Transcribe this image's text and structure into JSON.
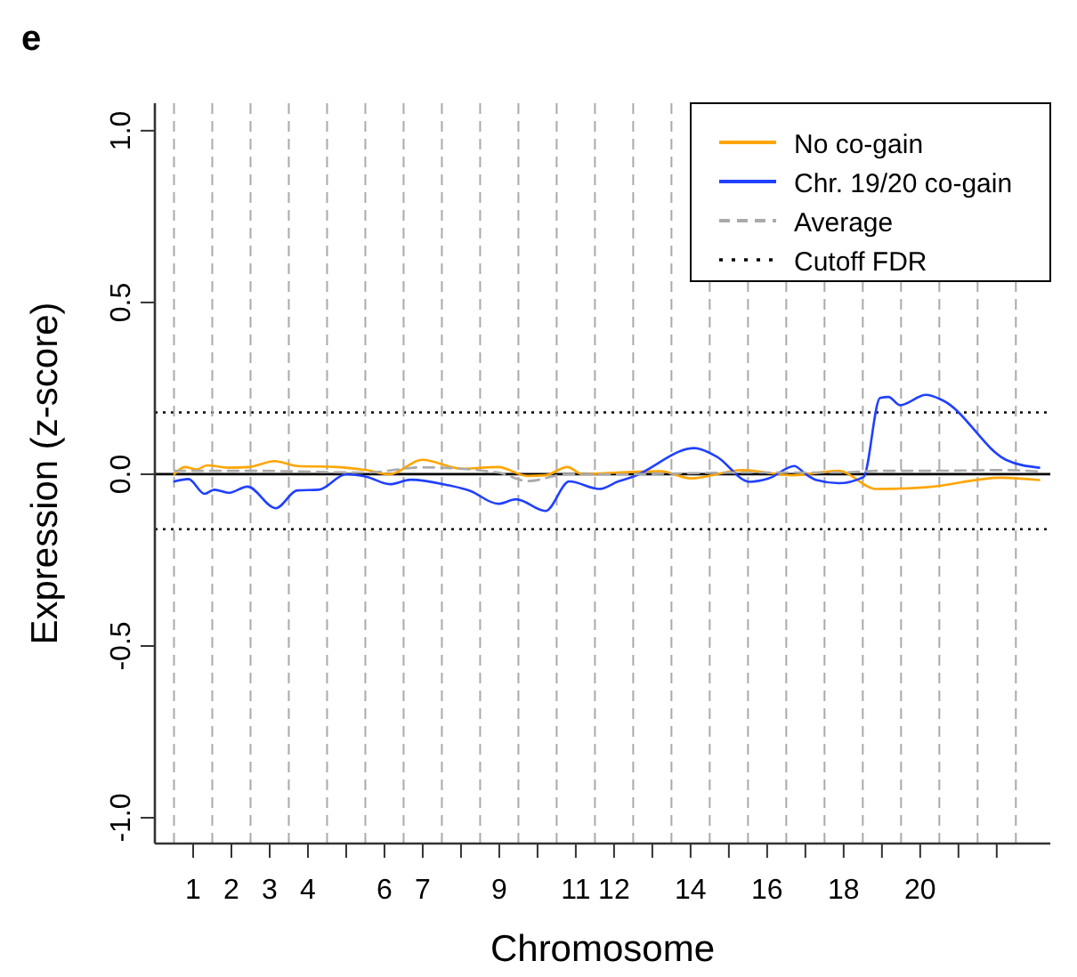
{
  "chart_data": {
    "type": "line",
    "annotations": [
      "e"
    ],
    "xlabel": "Chromosome",
    "ylabel": "Expression (z-score)",
    "xlim": [
      0,
      23.4
    ],
    "ylim": [
      -1.075,
      1.08
    ],
    "xticks": [
      1,
      2,
      3,
      4,
      {
        "value": 5,
        "label": null
      },
      6,
      7,
      {
        "value": 8,
        "label": null
      },
      9,
      {
        "value": 10,
        "label": null
      },
      11,
      12,
      {
        "value": 13,
        "label": null
      },
      14,
      {
        "value": 15,
        "label": null
      },
      16,
      {
        "value": 17,
        "label": null
      },
      18,
      {
        "value": 19,
        "label": null
      },
      20,
      {
        "value": 21,
        "label": null
      },
      {
        "value": 22,
        "label": null
      }
    ],
    "yticks": [
      {
        "value": -1,
        "label": "-1.0"
      },
      {
        "value": -0.5,
        "label": "-0.5"
      },
      {
        "value": 0,
        "label": "0.0"
      },
      {
        "value": 0.5,
        "label": "0.5"
      },
      {
        "value": 1,
        "label": "1.0"
      }
    ],
    "grid": false,
    "legend": "top right",
    "series": [
      {
        "name": "No co-gain",
        "color": "#ffa500",
        "x": [
          0.51,
          0.78,
          1.1,
          1.36,
          1.93,
          2.47,
          3.13,
          3.72,
          4.77,
          5.52,
          6.14,
          6.98,
          8.02,
          8.97,
          9.74,
          10.21,
          10.78,
          11.17,
          12.11,
          13.21,
          14.0,
          15.36,
          16.66,
          17.86,
          18.86,
          20.15,
          22.11,
          23.11
        ],
        "values": [
          0.0,
          0.021,
          0.014,
          0.026,
          0.019,
          0.021,
          0.038,
          0.024,
          0.021,
          0.012,
          0.0,
          0.042,
          0.016,
          0.021,
          -0.005,
          -0.003,
          0.021,
          0.0,
          0.005,
          0.009,
          -0.012,
          0.012,
          -0.003,
          0.01,
          -0.043,
          -0.038,
          -0.01,
          -0.017
        ]
      },
      {
        "name": "Chr. 19/20 co-gain",
        "color": "#2040ff",
        "x": [
          0.51,
          0.88,
          1.3,
          1.55,
          1.93,
          2.42,
          3.16,
          3.72,
          4.28,
          5.0,
          5.52,
          6.14,
          6.68,
          7.62,
          8.23,
          8.97,
          9.44,
          10.21,
          10.83,
          11.61,
          12.11,
          12.48,
          14.1,
          14.67,
          15.55,
          16.05,
          16.71,
          17.01,
          17.29,
          17.86,
          18.52,
          18.95,
          19.17,
          19.47,
          20.15,
          20.59,
          22.24,
          23.11
        ],
        "values": [
          -0.021,
          -0.014,
          -0.057,
          -0.045,
          -0.054,
          -0.036,
          -0.099,
          -0.047,
          -0.045,
          0.0,
          -0.007,
          -0.029,
          -0.016,
          -0.031,
          -0.048,
          -0.086,
          -0.073,
          -0.107,
          -0.021,
          -0.043,
          -0.021,
          -0.008,
          0.076,
          0.052,
          -0.022,
          -0.012,
          0.024,
          0.0,
          -0.017,
          -0.026,
          -0.008,
          0.222,
          0.225,
          0.201,
          0.231,
          0.215,
          0.042,
          0.019
        ]
      },
      {
        "name": "Average",
        "color": "#aaaaaa",
        "line_style": "dashed",
        "x": [
          0.51,
          2.5,
          5.52,
          6.98,
          8.97,
          9.74,
          10.78,
          12.11,
          15.55,
          17.86,
          18.95,
          20.15,
          22.24,
          23.11
        ],
        "values": [
          0.01,
          0.01,
          0.005,
          0.02,
          0.005,
          -0.02,
          0.0,
          0.0,
          0.005,
          0.005,
          0.01,
          0.01,
          0.012,
          0.008
        ]
      }
    ],
    "ref_lines": [
      {
        "axis": "y",
        "value": 0,
        "color": "#000000",
        "line_style": "solid"
      },
      {
        "axis": "y",
        "value": 0.18,
        "label": "Cutoff FDR",
        "color": "#000000",
        "line_style": "dotted"
      },
      {
        "axis": "y",
        "value": -0.16,
        "color": "#000000",
        "line_style": "dotted"
      },
      {
        "axis": "x",
        "value": 0.5,
        "color": "#aaaaaa",
        "line_style": "dashed"
      },
      {
        "axis": "x",
        "value": 1.5,
        "color": "#aaaaaa",
        "line_style": "dashed"
      },
      {
        "axis": "x",
        "value": 2.5,
        "color": "#aaaaaa",
        "line_style": "dashed"
      },
      {
        "axis": "x",
        "value": 3.5,
        "color": "#aaaaaa",
        "line_style": "dashed"
      },
      {
        "axis": "x",
        "value": 4.5,
        "color": "#aaaaaa",
        "line_style": "dashed"
      },
      {
        "axis": "x",
        "value": 5.5,
        "color": "#aaaaaa",
        "line_style": "dashed"
      },
      {
        "axis": "x",
        "value": 6.5,
        "color": "#aaaaaa",
        "line_style": "dashed"
      },
      {
        "axis": "x",
        "value": 7.5,
        "color": "#aaaaaa",
        "line_style": "dashed"
      },
      {
        "axis": "x",
        "value": 8.5,
        "color": "#aaaaaa",
        "line_style": "dashed"
      },
      {
        "axis": "x",
        "value": 9.5,
        "color": "#aaaaaa",
        "line_style": "dashed"
      },
      {
        "axis": "x",
        "value": 10.5,
        "color": "#aaaaaa",
        "line_style": "dashed"
      },
      {
        "axis": "x",
        "value": 11.5,
        "color": "#aaaaaa",
        "line_style": "dashed"
      },
      {
        "axis": "x",
        "value": 12.5,
        "color": "#aaaaaa",
        "line_style": "dashed"
      },
      {
        "axis": "x",
        "value": 13.5,
        "color": "#aaaaaa",
        "line_style": "dashed"
      },
      {
        "axis": "x",
        "value": 14.5,
        "color": "#aaaaaa",
        "line_style": "dashed"
      },
      {
        "axis": "x",
        "value": 15.5,
        "color": "#aaaaaa",
        "line_style": "dashed"
      },
      {
        "axis": "x",
        "value": 16.5,
        "color": "#aaaaaa",
        "line_style": "dashed"
      },
      {
        "axis": "x",
        "value": 17.5,
        "color": "#aaaaaa",
        "line_style": "dashed"
      },
      {
        "axis": "x",
        "value": 18.5,
        "color": "#aaaaaa",
        "line_style": "dashed"
      },
      {
        "axis": "x",
        "value": 19.5,
        "color": "#aaaaaa",
        "line_style": "dashed"
      },
      {
        "axis": "x",
        "value": 20.5,
        "color": "#aaaaaa",
        "line_style": "dashed"
      },
      {
        "axis": "x",
        "value": 21.5,
        "color": "#aaaaaa",
        "line_style": "dashed"
      },
      {
        "axis": "x",
        "value": 22.5,
        "color": "#aaaaaa",
        "line_style": "dashed"
      }
    ]
  }
}
